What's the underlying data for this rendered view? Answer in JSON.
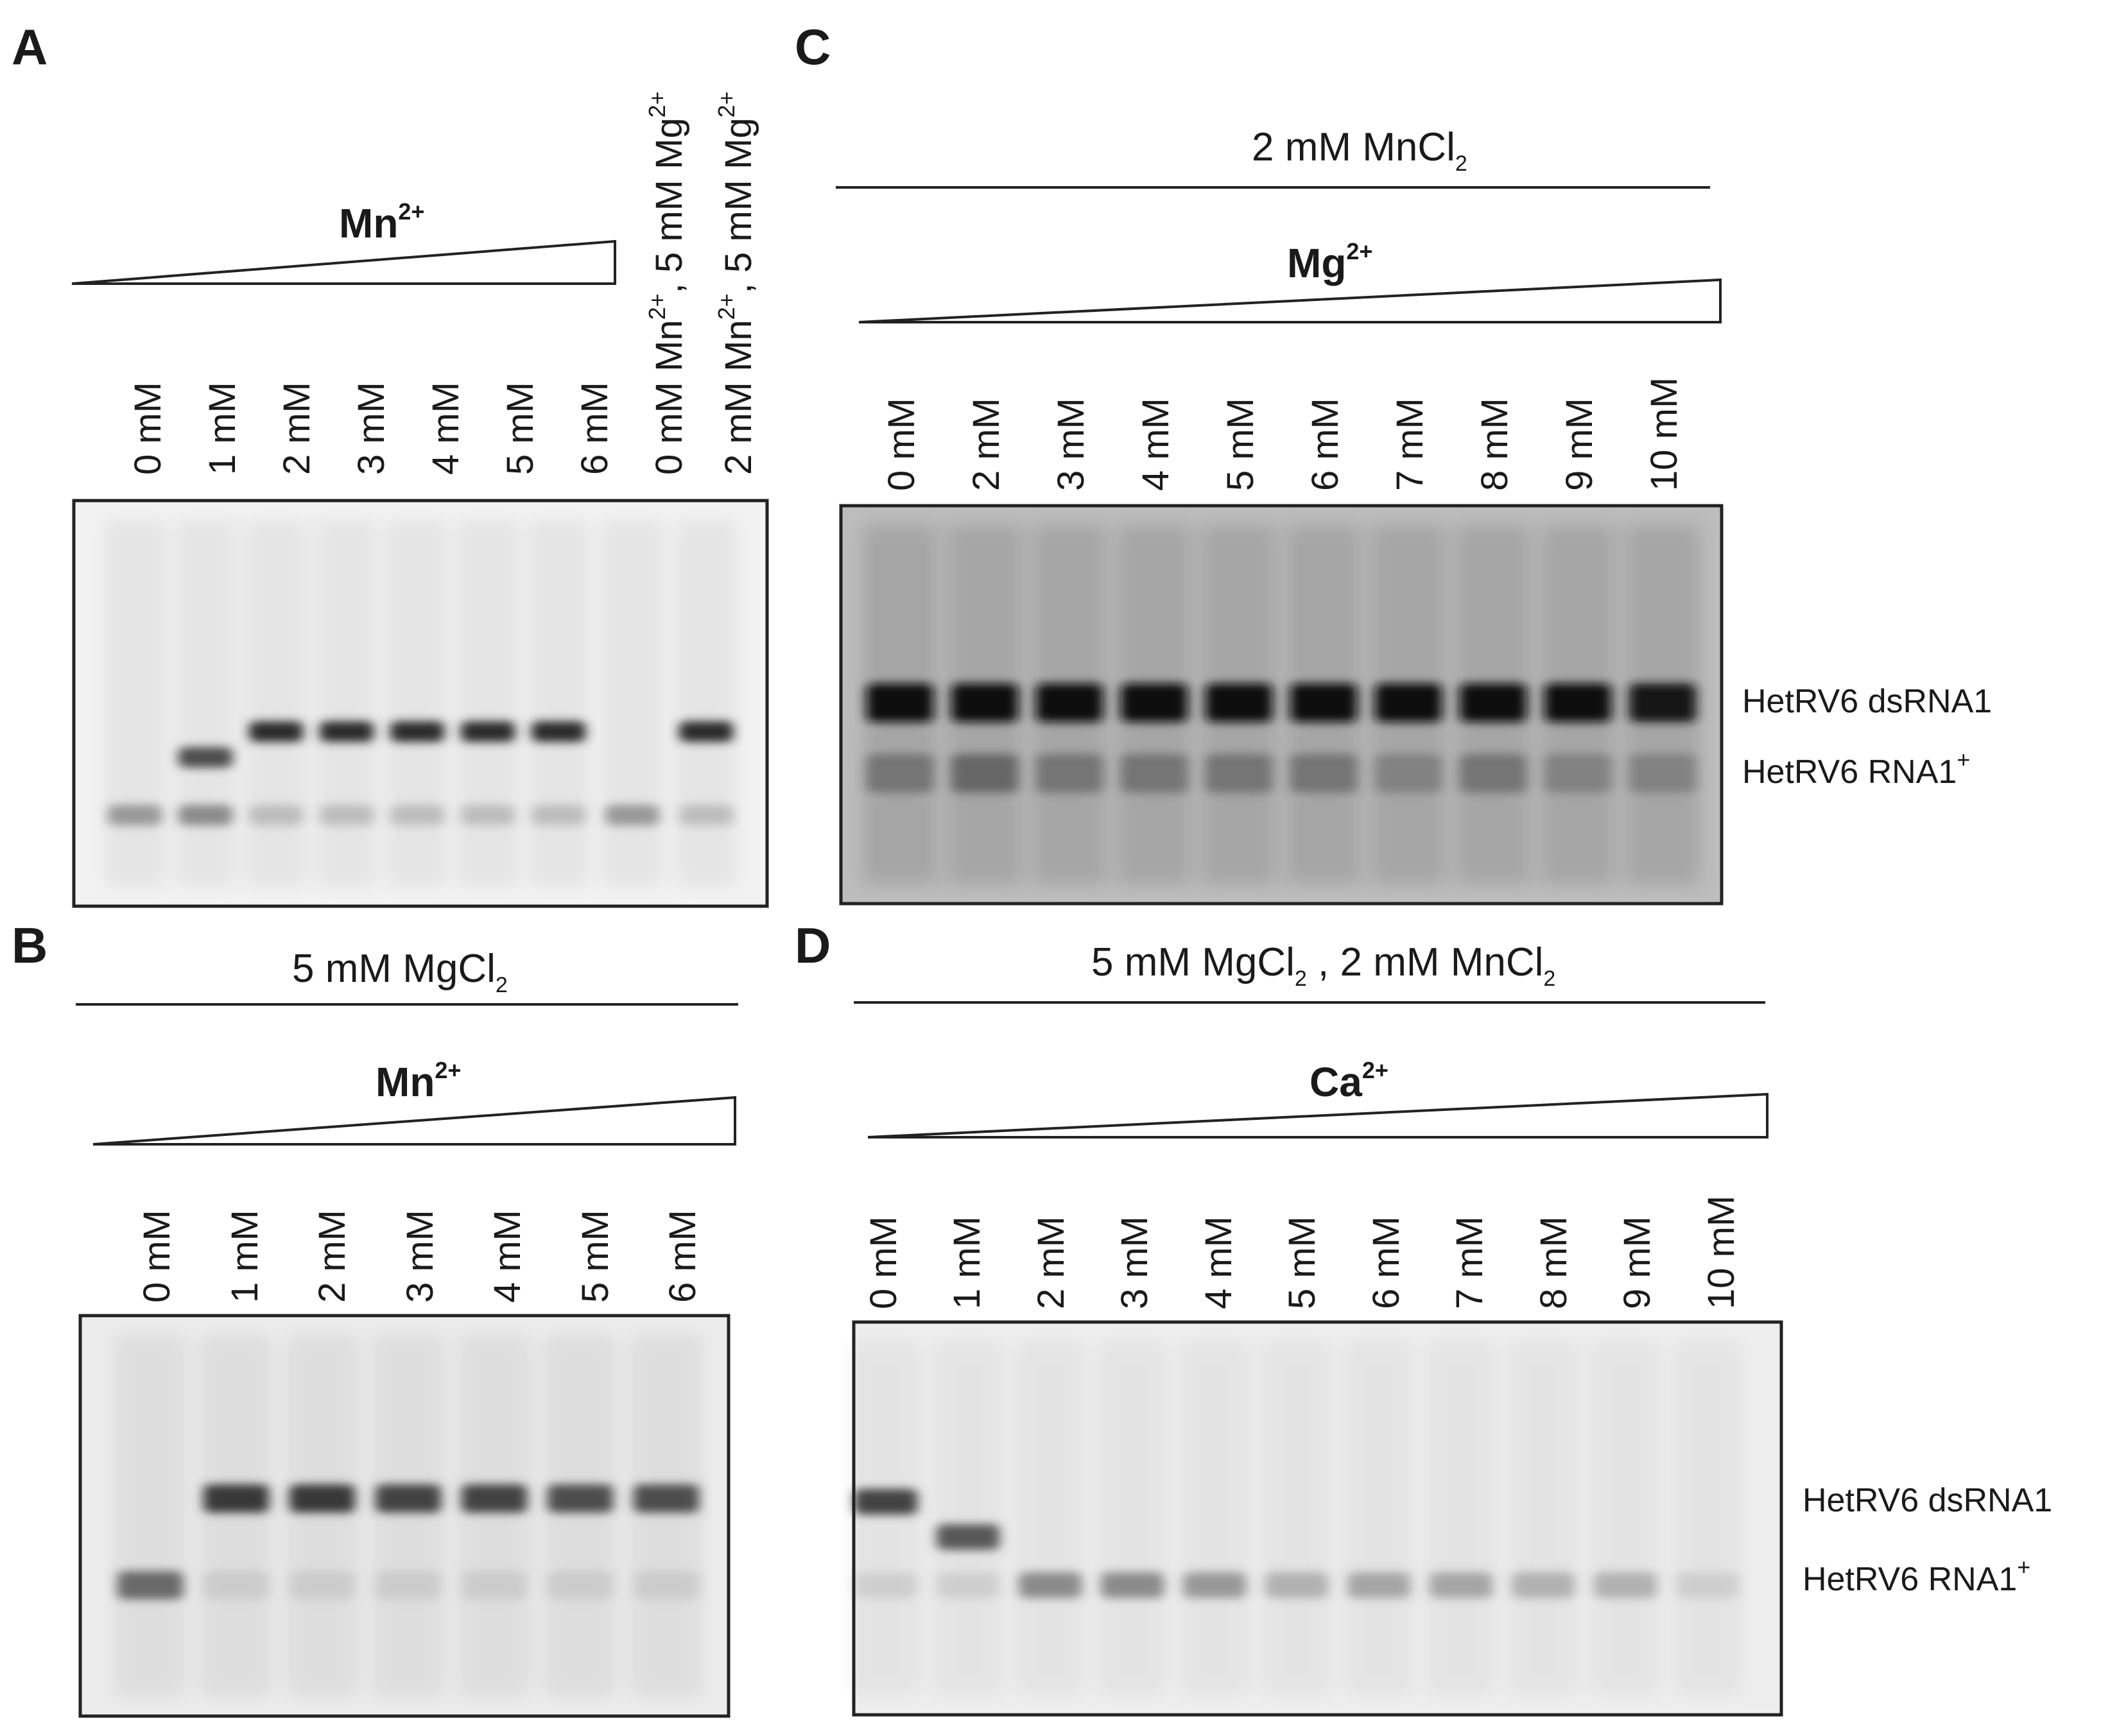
{
  "panels": {
    "A": {
      "letter": "A",
      "gradient_ion": "Mn",
      "gradient_ion_charge": "2+",
      "lanes": [
        "0 mM",
        "1 mM",
        "2 mM",
        "3 mM",
        "4 mM",
        "5 mM",
        "6 mM"
      ],
      "extra_lanes": [
        {
          "mn": "0 mM Mn",
          "mn_charge": "2+",
          "sep": ", ",
          "mg": "5 mM Mg",
          "mg_charge": "2+"
        },
        {
          "mn": "2 mM Mn",
          "mn_charge": "2+",
          "sep": ", ",
          "mg": "5 mM Mg",
          "mg_charge": "2+"
        }
      ]
    },
    "B": {
      "letter": "B",
      "condition_prefix": "5 mM MgCl",
      "condition_sub": "2",
      "gradient_ion": "Mn",
      "gradient_ion_charge": "2+",
      "lanes": [
        "0 mM",
        "1 mM",
        "2 mM",
        "3 mM",
        "4 mM",
        "5 mM",
        "6 mM"
      ]
    },
    "C": {
      "letter": "C",
      "condition_prefix": "2 mM MnCl",
      "condition_sub": "2",
      "gradient_ion": "Mg",
      "gradient_ion_charge": "2+",
      "lanes": [
        "0 mM",
        "2 mM",
        "3 mM",
        "4 mM",
        "5 mM",
        "6 mM",
        "7 mM",
        "8 mM",
        "9 mM",
        "10 mM"
      ],
      "band_upper": "HetRV6 dsRNA1",
      "band_lower": "HetRV6 RNA1",
      "band_lower_sup": "+"
    },
    "D": {
      "letter": "D",
      "condition_a": "5 mM MgCl",
      "condition_a_sub": "2",
      "condition_sep": " ,  ",
      "condition_b": "2 mM MnCl",
      "condition_b_sub": "2",
      "gradient_ion": "Ca",
      "gradient_ion_charge": "2+",
      "lanes": [
        "0 mM",
        "1 mM",
        "2 mM",
        "3 mM",
        "4 mM",
        "5 mM",
        "6 mM",
        "7 mM",
        "8 mM",
        "9 mM",
        "10 mM"
      ],
      "band_upper": "HetRV6 dsRNA1",
      "band_lower": "HetRV6 RNA1",
      "band_lower_sup": "+"
    }
  },
  "gel_bands": {
    "A": [
      {
        "low": 0.45,
        "mid": 0.0,
        "up": 0.0
      },
      {
        "low": 0.5,
        "mid": 0.7,
        "up": 0.0
      },
      {
        "low": 0.3,
        "mid": 0.0,
        "up": 0.85
      },
      {
        "low": 0.3,
        "mid": 0.0,
        "up": 0.85
      },
      {
        "low": 0.3,
        "mid": 0.0,
        "up": 0.85
      },
      {
        "low": 0.3,
        "mid": 0.0,
        "up": 0.85
      },
      {
        "low": 0.3,
        "mid": 0.0,
        "up": 0.85
      },
      {
        "low": 0.45,
        "mid": 0.0,
        "up": 0.0
      },
      {
        "low": 0.3,
        "mid": 0.0,
        "up": 0.85
      }
    ],
    "B": [
      {
        "low": 0.6,
        "up": 0.0
      },
      {
        "low": 0.2,
        "up": 0.8
      },
      {
        "low": 0.2,
        "up": 0.8
      },
      {
        "low": 0.2,
        "up": 0.75
      },
      {
        "low": 0.2,
        "up": 0.75
      },
      {
        "low": 0.2,
        "up": 0.7
      },
      {
        "low": 0.2,
        "up": 0.7
      }
    ],
    "C": [
      {
        "up": 1.0,
        "low": 0.55
      },
      {
        "up": 1.0,
        "low": 0.6
      },
      {
        "up": 1.0,
        "low": 0.55
      },
      {
        "up": 1.0,
        "low": 0.55
      },
      {
        "up": 1.0,
        "low": 0.55
      },
      {
        "up": 1.0,
        "low": 0.55
      },
      {
        "up": 1.0,
        "low": 0.5
      },
      {
        "up": 1.0,
        "low": 0.55
      },
      {
        "up": 1.0,
        "low": 0.5
      },
      {
        "up": 0.95,
        "low": 0.5
      }
    ],
    "D": [
      {
        "up": 0.75,
        "mid": 0.0,
        "low": 0.2
      },
      {
        "up": 0.0,
        "mid": 0.65,
        "low": 0.2
      },
      {
        "up": 0.0,
        "mid": 0.0,
        "low": 0.5
      },
      {
        "up": 0.0,
        "mid": 0.0,
        "low": 0.5
      },
      {
        "up": 0.0,
        "mid": 0.0,
        "low": 0.45
      },
      {
        "up": 0.0,
        "mid": 0.0,
        "low": 0.35
      },
      {
        "up": 0.0,
        "mid": 0.0,
        "low": 0.4
      },
      {
        "up": 0.0,
        "mid": 0.0,
        "low": 0.4
      },
      {
        "up": 0.0,
        "mid": 0.0,
        "low": 0.35
      },
      {
        "up": 0.0,
        "mid": 0.0,
        "low": 0.35
      },
      {
        "up": 0.0,
        "mid": 0.0,
        "low": 0.2
      }
    ]
  }
}
